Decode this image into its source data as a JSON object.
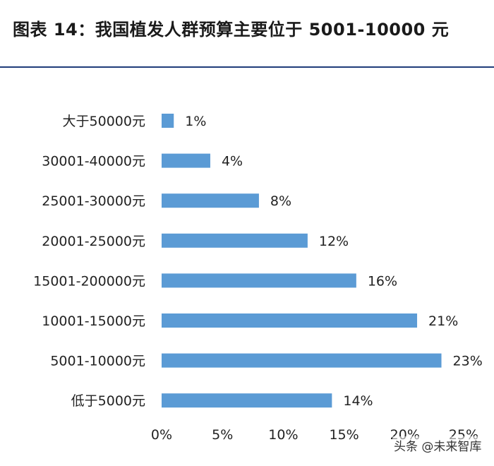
{
  "title": "图表 14：我国植发人群预算主要位于 5001-10000 元",
  "watermark": "头条 @未来智库",
  "colors": {
    "bar": "#5b9bd5",
    "title_rule": "#1f3d7a"
  },
  "chart_data": {
    "type": "bar",
    "orientation": "horizontal",
    "categories": [
      "大于50000元",
      "30001-40000元",
      "25001-30000元",
      "20001-25000元",
      "15001-200000元",
      "10001-15000元",
      "5001-10000元",
      "低于5000元"
    ],
    "values": [
      1,
      4,
      8,
      12,
      16,
      21,
      23,
      14
    ],
    "value_labels": [
      "1%",
      "4%",
      "8%",
      "12%",
      "16%",
      "21%",
      "23%",
      "14%"
    ],
    "xlim": [
      0,
      25
    ],
    "x_ticks": [
      0,
      5,
      10,
      15,
      20,
      25
    ],
    "x_tick_labels": [
      "0%",
      "5%",
      "10%",
      "15%",
      "20%",
      "25%"
    ],
    "grid": false,
    "legend": "none"
  }
}
